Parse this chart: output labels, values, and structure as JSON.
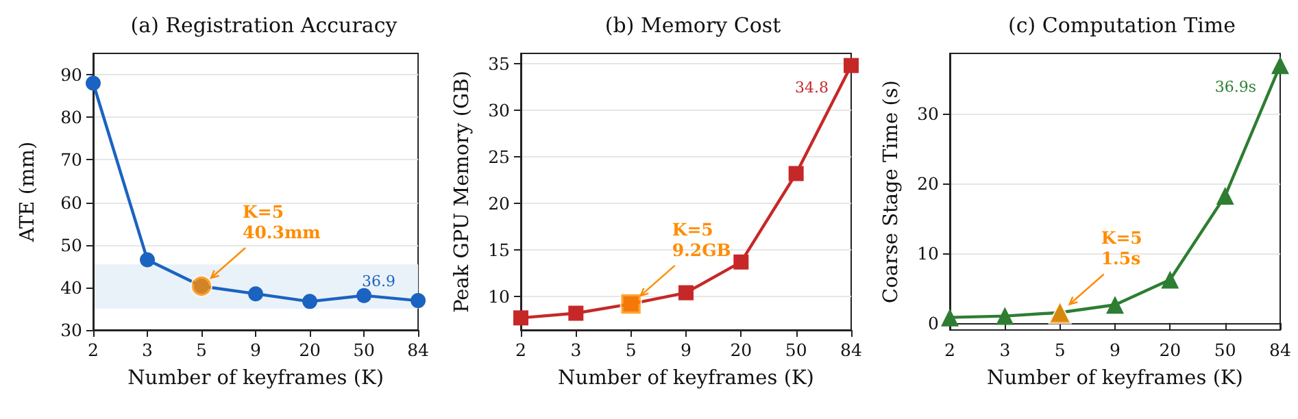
{
  "chart_data": [
    {
      "type": "line",
      "title": "(a) Registration Accuracy",
      "xlabel": "Number of keyframes (K)",
      "ylabel": "ATE (mm)",
      "categories": [
        "2",
        "3",
        "5",
        "9",
        "20",
        "50",
        "84"
      ],
      "series": [
        {
          "color": "#1b63c0",
          "values": [
            88,
            46.5,
            40.3,
            38.5,
            36.7,
            38.1,
            36.9
          ],
          "value_labels": [
            null,
            null,
            null,
            null,
            null,
            null,
            "36.9"
          ]
        },
        {
          "type": "scatter",
          "color": "#ff8c00",
          "x": [
            "5"
          ],
          "values": [
            40.3
          ]
        }
      ],
      "ylim": [
        30,
        95
      ],
      "yticks": [
        30,
        40,
        50,
        60,
        70,
        80,
        90
      ],
      "grid": "y",
      "marker": "circle",
      "line_style": "solid",
      "bands": [
        {
          "axis": "y",
          "from": 35,
          "to": 45.4,
          "color": "#eaf2f9"
        }
      ],
      "annotations": [
        "K=5\n40.3mm"
      ]
    },
    {
      "type": "line",
      "title": "(b) Memory Cost",
      "xlabel": "Number of keyframes (K)",
      "ylabel": "Peak GPU Memory (GB)",
      "categories": [
        "2",
        "3",
        "5",
        "9",
        "20",
        "50",
        "84"
      ],
      "series": [
        {
          "color": "#c62828",
          "values": [
            7.7,
            8.2,
            9.2,
            10.4,
            13.7,
            23.2,
            34.8
          ],
          "value_labels": [
            null,
            null,
            null,
            null,
            null,
            null,
            "34.8"
          ]
        },
        {
          "type": "scatter",
          "color": "#ff8c00",
          "x": [
            "5"
          ],
          "values": [
            9.2
          ]
        }
      ],
      "ylim": [
        6.4,
        36.1
      ],
      "yticks": [
        10,
        15,
        20,
        25,
        30,
        35
      ],
      "grid": "y",
      "marker": "square",
      "line_style": "solid",
      "annotations": [
        "K=5\n9.2GB"
      ]
    },
    {
      "type": "line",
      "title": "(c) Computation Time",
      "xlabel": "Number of keyframes (K)",
      "ylabel": "Coarse Stage Time (s)",
      "categories": [
        "2",
        "3",
        "5",
        "9",
        "20",
        "50",
        "84"
      ],
      "series": [
        {
          "color": "#2e7d32",
          "values": [
            0.8,
            1.0,
            1.5,
            2.6,
            6.2,
            18.2,
            36.9
          ],
          "value_labels": [
            null,
            null,
            null,
            null,
            null,
            null,
            "36.9s"
          ]
        },
        {
          "type": "scatter",
          "color": "#ff8c00",
          "x": [
            "5"
          ],
          "values": [
            1.5
          ]
        }
      ],
      "ylim": [
        -1,
        38.6
      ],
      "yticks": [
        0,
        10,
        20,
        30
      ],
      "grid": "y",
      "marker": "triangle",
      "line_style": "solid",
      "annotations": [
        "K=5\n1.5s"
      ]
    }
  ]
}
